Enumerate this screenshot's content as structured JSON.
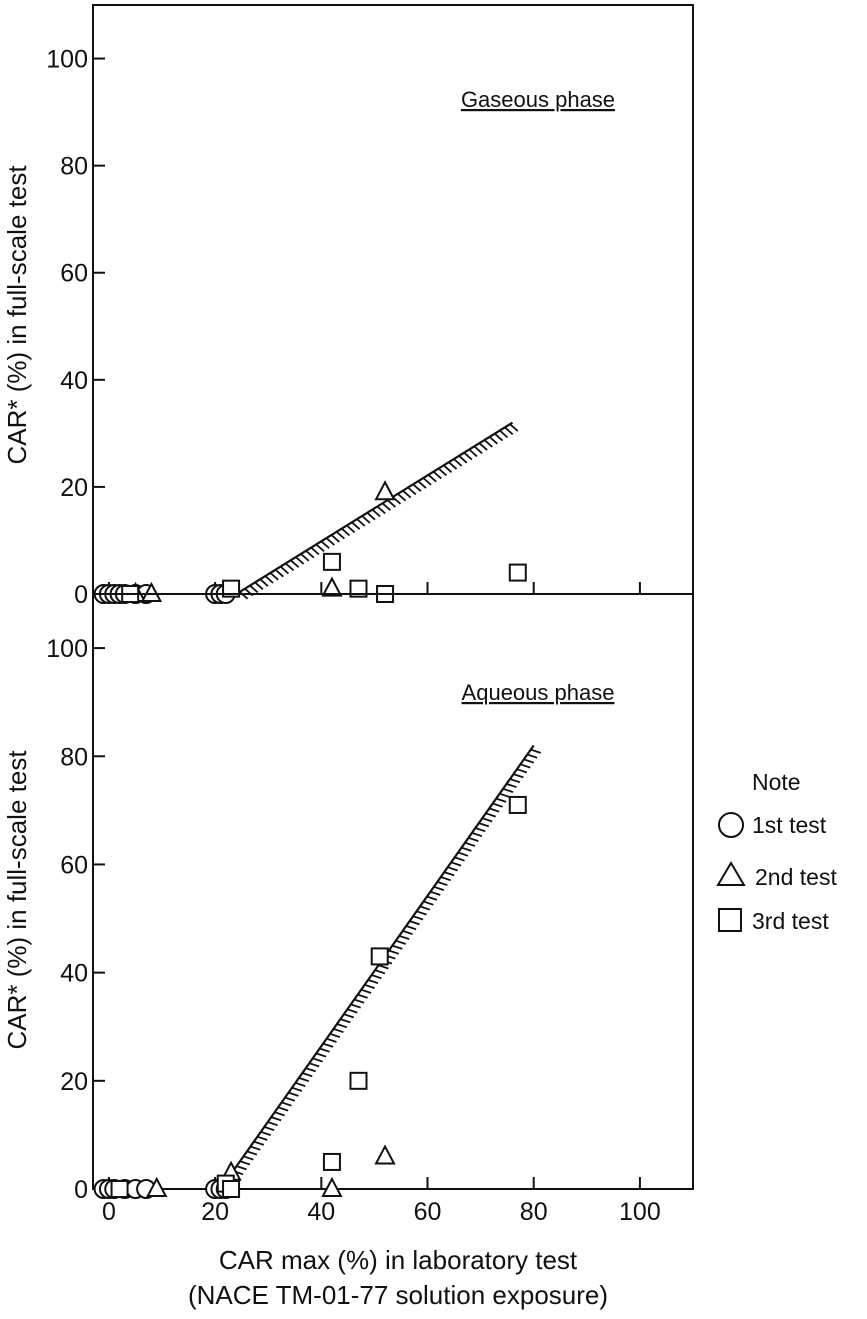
{
  "chart_data": [
    {
      "type": "scatter",
      "title": "Gaseous phase",
      "xlabel": "CAR max (%) in laboratory test",
      "xlabel2": "(NACE TM-01-77 solution exposure)",
      "ylabel": "CAR* (%) in full-scale test",
      "xlim": [
        -3,
        110
      ],
      "ylim": [
        0,
        110
      ],
      "xticks": [
        "0",
        "20",
        "40",
        "60",
        "80",
        "100"
      ],
      "yticks": [
        "0",
        "20",
        "40",
        "60",
        "80",
        "100"
      ],
      "trend_line": {
        "x": [
          24,
          76
        ],
        "y": [
          0,
          32
        ]
      },
      "series": [
        {
          "name": "1st test",
          "marker": "circle",
          "x": [
            -1,
            0,
            1,
            2,
            3,
            5,
            7,
            20,
            21,
            22
          ],
          "y": [
            0,
            0,
            0,
            0,
            0,
            0,
            0,
            0,
            0,
            0
          ]
        },
        {
          "name": "2nd test",
          "marker": "triangle",
          "x": [
            5,
            8,
            42,
            52
          ],
          "y": [
            0,
            0,
            1,
            19
          ]
        },
        {
          "name": "3rd test",
          "marker": "square",
          "x": [
            4,
            23,
            42,
            47,
            52,
            77
          ],
          "y": [
            0,
            1,
            6,
            1,
            0,
            4
          ]
        }
      ]
    },
    {
      "type": "scatter",
      "title": "Aqueous phase",
      "xlabel": "CAR max (%) in laboratory test",
      "xlabel2": "(NACE TM-01-77 solution exposure)",
      "ylabel": "CAR* (%) in full-scale test",
      "xlim": [
        -3,
        110
      ],
      "ylim": [
        0,
        110
      ],
      "xticks": [
        "0",
        "20",
        "40",
        "60",
        "80",
        "100"
      ],
      "yticks": [
        "0",
        "20",
        "40",
        "60",
        "80",
        "100"
      ],
      "trend_line": {
        "x": [
          21,
          80
        ],
        "y": [
          0,
          82
        ]
      },
      "series": [
        {
          "name": "1st test",
          "marker": "circle",
          "x": [
            -1,
            0,
            1,
            3,
            5,
            7,
            20,
            21,
            22
          ],
          "y": [
            0,
            0,
            0,
            0,
            0,
            0,
            0,
            0,
            0
          ]
        },
        {
          "name": "2nd test",
          "marker": "triangle",
          "x": [
            9,
            23,
            42,
            52
          ],
          "y": [
            0,
            3,
            0,
            6
          ]
        },
        {
          "name": "3rd test",
          "marker": "square",
          "x": [
            2,
            22,
            23,
            42,
            47,
            51,
            77
          ],
          "y": [
            0,
            1,
            0,
            5,
            20,
            43,
            71
          ]
        }
      ]
    }
  ],
  "legend": {
    "title": "Note",
    "items": [
      {
        "marker": "circle",
        "label": "1st  test"
      },
      {
        "marker": "triangle",
        "label": "2nd  test"
      },
      {
        "marker": "square",
        "label": "3rd  test"
      }
    ]
  }
}
